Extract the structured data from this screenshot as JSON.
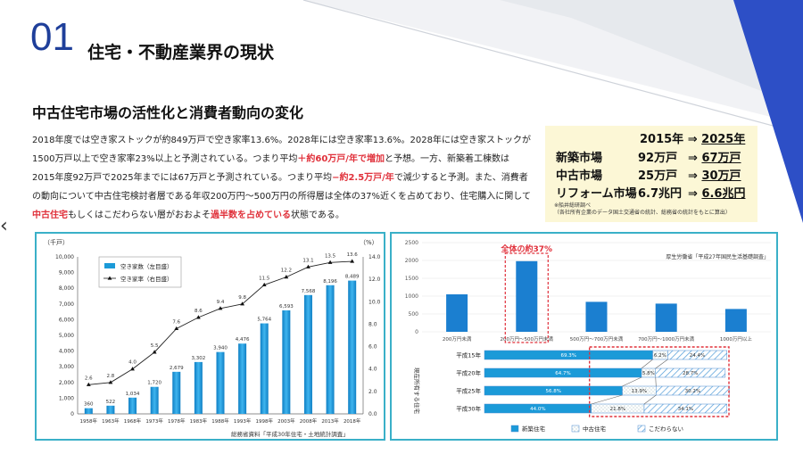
{
  "header": {
    "number": "01",
    "title": "住宅・不動産業界の現状"
  },
  "section_heading": "中古住宅市場の活性化と消費者動向の変化",
  "body": {
    "p1": "2018年度では空き家ストックが約849万戸で空き家率13.6%。2028年には空き家率13.6%。2028年には空き家ストックが1500万戸以上で空き家率23%以上と予測されている。つまり平均",
    "p1_red": "＋約60万戸/年で増加",
    "p2": "と予想。一方、新築着工棟数は2015年度92万戸で2025年までには67万戸と予測されている。つまり平均",
    "p2_red": "−約2.5万戸/年",
    "p3": "で減少すると予測。また、消費者の動向について中古住宅検討者層である年収200万円〜500万円の所得層は全体の37%近くを占めており、住宅購入に関して",
    "p3_red": "中古住宅",
    "p4": "もしくはこだわらない層がおおよそ",
    "p4_red": "過半数を占めている",
    "p5": "状態である。"
  },
  "stats": {
    "year_from": "2015年",
    "arrow": "⇒",
    "year_to": "2025年",
    "rows": [
      {
        "label": "新築市場",
        "from": "92万戸",
        "to": "67万戸"
      },
      {
        "label": "中古市場",
        "from": "25万戸",
        "to": "30万戸"
      },
      {
        "label": "リフォーム市場",
        "from": "6.7兆円",
        "to": "6.6兆円"
      }
    ],
    "note1": "※船井総研調べ",
    "note2": "（各社所有企業のデータ国土交通省の統計、総務省の統計をもとに算出）"
  },
  "colors": {
    "accent": "#1f3f9a",
    "bar": "#1b9ad8",
    "highlight": "#e0303a",
    "frame": "#3ab0c8"
  },
  "chart_data": [
    {
      "type": "bar",
      "unit_left": "（千戸）",
      "unit_right": "（%）",
      "categories": [
        "1958年",
        "1963年",
        "1968年",
        "1973年",
        "1978年",
        "1983年",
        "1988年",
        "1993年",
        "1998年",
        "2003年",
        "2008年",
        "2013年",
        "2018年"
      ],
      "series": [
        {
          "name": "空き家数（左目盛）",
          "type": "bar",
          "values": [
            360,
            522,
            1034,
            1720,
            2679,
            3302,
            3940,
            4476,
            5764,
            6593,
            7568,
            8196,
            8489
          ]
        },
        {
          "name": "空き家率（右目盛）",
          "type": "line",
          "values": [
            2.6,
            2.8,
            4.0,
            5.5,
            7.6,
            8.6,
            9.4,
            9.8,
            11.5,
            12.2,
            13.1,
            13.5,
            13.6
          ]
        }
      ],
      "value_labels": [
        "360",
        "522",
        "1,034",
        "1,720",
        "2,679",
        "3,302",
        "3,940",
        "4,476",
        "5,764",
        "6,593",
        "7,568",
        "8,196",
        "8,489"
      ],
      "rate_labels": [
        "2.6",
        "2.8",
        "4.0",
        "5.5",
        "7.6",
        "8.6",
        "9.4",
        "9.8",
        "11.5",
        "12.2",
        "13.1",
        "13.5",
        "13.6"
      ],
      "left_ticks": [
        "0",
        "1,000",
        "2,000",
        "3,000",
        "4,000",
        "5,000",
        "6,000",
        "7,000",
        "8,000",
        "9,000",
        "10,000"
      ],
      "right_ticks": [
        "0.0",
        "2.0",
        "4.0",
        "6.0",
        "8.0",
        "10.0",
        "12.0",
        "14.0"
      ],
      "ylim": [
        0,
        10000
      ],
      "y2lim": [
        0,
        14
      ],
      "source": "総務省資料「平成30年住宅・土地統計調査」",
      "legend": "top-left"
    },
    {
      "type": "bar",
      "categories": [
        "200万円未満",
        "200万円〜500万円未満",
        "500万円〜700万円未満",
        "700万円〜1000万円未満",
        "1000万円以上"
      ],
      "values": [
        1050,
        1980,
        840,
        790,
        640
      ],
      "ylim": [
        0,
        2500
      ],
      "ticks": [
        "0",
        "500",
        "1000",
        "1500",
        "2000",
        "2500"
      ],
      "annotation": "全体の約37%",
      "source": "厚生労働省「平成27年国民生活基礎調査」"
    },
    {
      "type": "bar",
      "stacked": true,
      "horizontal": true,
      "ylabel": "現在所有する住宅",
      "categories": [
        "平成15年",
        "平成20年",
        "平成25年",
        "平成30年"
      ],
      "series": [
        {
          "name": "新築住宅",
          "values": [
            69.3,
            64.7,
            56.8,
            44.0
          ]
        },
        {
          "name": "中古住宅",
          "values": [
            6.2,
            5.8,
            13.9,
            21.8
          ]
        },
        {
          "name": "こだわらない",
          "values": [
            24.4,
            28.7,
            30.2,
            34.1
          ]
        }
      ],
      "labels": [
        [
          "69.3%",
          "6.2%",
          "24.4%"
        ],
        [
          "64.7%",
          "5.8%",
          "28.7%"
        ],
        [
          "56.8%",
          "13.9%",
          "30.2%"
        ],
        [
          "44.0%",
          "21.8%",
          "34.1%"
        ]
      ],
      "legend": "bottom"
    }
  ]
}
